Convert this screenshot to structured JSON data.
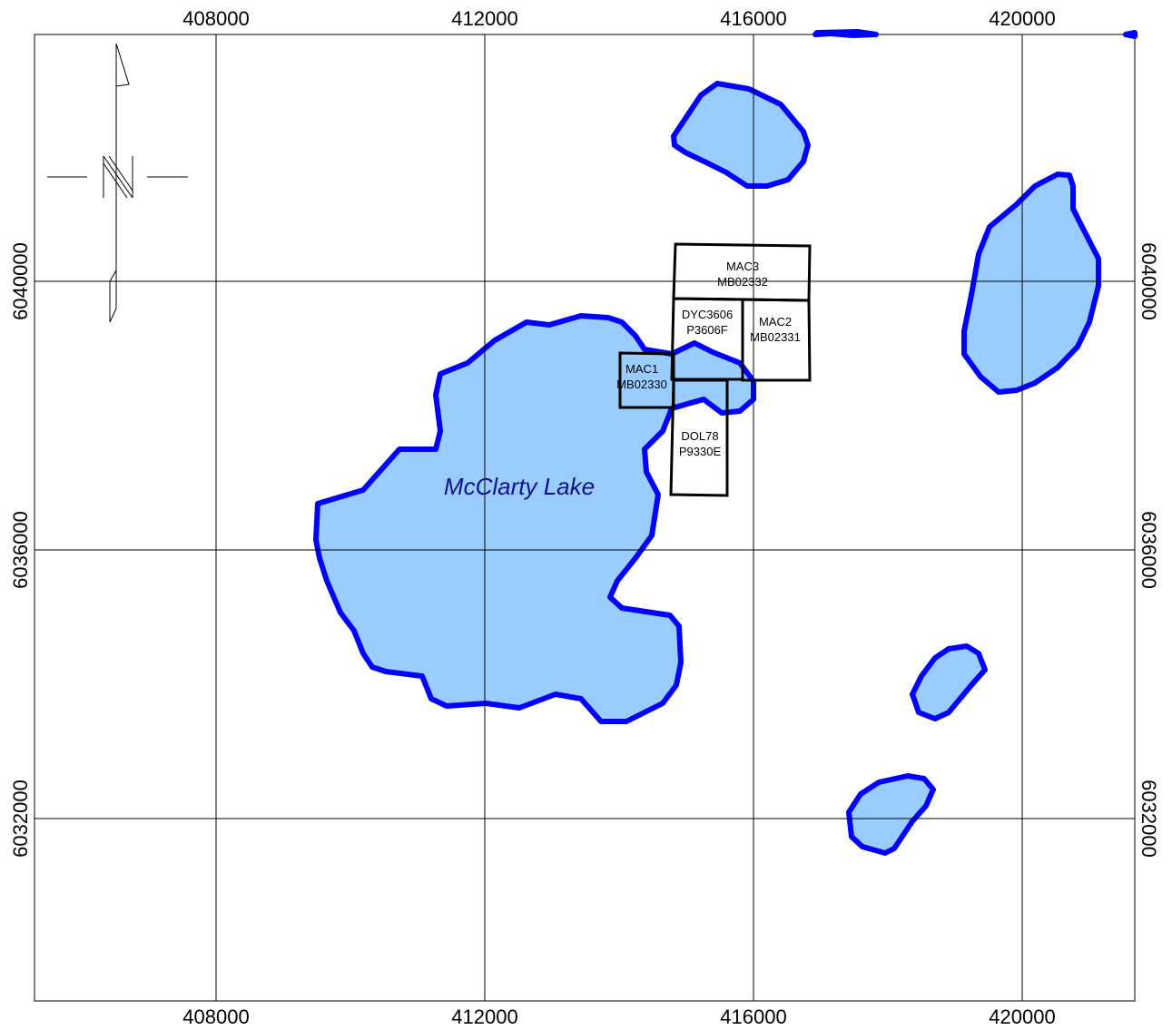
{
  "map": {
    "x_ticks": [
      "408000",
      "412000",
      "416000",
      "420000"
    ],
    "y_ticks": [
      "6040000",
      "6036000",
      "6032000"
    ],
    "lake_name": "McClarty Lake",
    "colors": {
      "water_fill": "#99ccff",
      "water_outline": "#0000ff",
      "claim_outline": "#000000",
      "lake_label": "#10108a"
    },
    "north_arrow_icon": "north-arrow-icon",
    "claims": [
      {
        "id": "MAC3",
        "code": "MB02332"
      },
      {
        "id": "DYC3606",
        "code": "P3606F"
      },
      {
        "id": "MAC2",
        "code": "MB02331"
      },
      {
        "id": "MAC1",
        "code": "MB02330"
      },
      {
        "id": "DOL78",
        "code": "P9330E"
      }
    ]
  }
}
